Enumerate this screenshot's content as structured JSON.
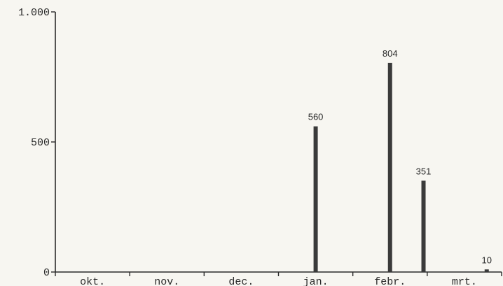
{
  "chart_data": {
    "type": "bar",
    "title": "",
    "xlabel": "",
    "ylabel": "",
    "ylim": [
      0,
      1000
    ],
    "yticks": [
      {
        "value": 0,
        "label": "0"
      },
      {
        "value": 500,
        "label": "500"
      },
      {
        "value": 1000,
        "label": "1.000"
      }
    ],
    "categories": [
      "okt.",
      "nov.",
      "dec.",
      "jan.",
      "febr.",
      "mrt."
    ],
    "bars": [
      {
        "x": 3.5,
        "value": 560,
        "label": "560"
      },
      {
        "x": 4.5,
        "value": 804,
        "label": "804"
      },
      {
        "x": 4.95,
        "value": 351,
        "label": "351"
      },
      {
        "x": 5.8,
        "value": 10,
        "label": "10"
      }
    ],
    "grid": false,
    "bar_color": "#3a3a3a"
  }
}
